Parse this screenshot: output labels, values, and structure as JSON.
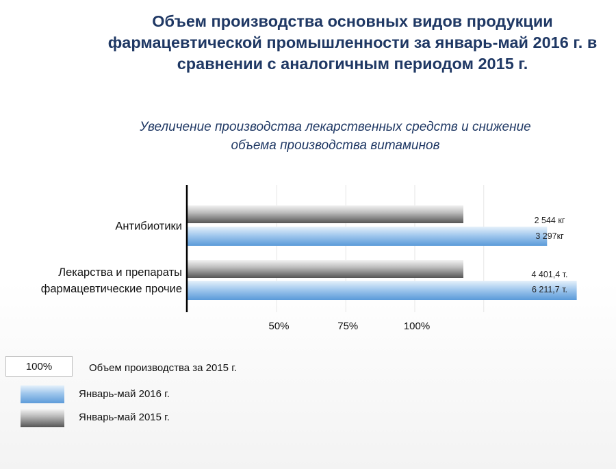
{
  "title": "Объем производства основных видов продукции\nфармацевтической промышленности за январь-май 2016 г. в\nсравнении с аналогичным периодом 2015 г.",
  "subtitle": "Увеличение производства лекарственных средств и снижение\nобъема производства витаминов",
  "colors": {
    "blue": "#5B9BD5",
    "grey": "#808080",
    "title": "#1F3864"
  },
  "chart_data": {
    "type": "bar",
    "orientation": "horizontal",
    "categories": [
      "Антибиотики",
      "Лекарства и препараты\nфармацевтические прочие"
    ],
    "series": [
      {
        "name": "Январь-май 2015 г.",
        "values": [
          100,
          100
        ],
        "labels": [
          "2 544 кг",
          "4 401,4 т."
        ]
      },
      {
        "name": "Январь-май 2016 г.",
        "values": [
          129.6,
          141.1
        ],
        "labels": [
          "3 297кг",
          "6 211,7 т."
        ]
      }
    ],
    "xticks": [
      "50%",
      "75%",
      "100%"
    ],
    "xlim": [
      0,
      157
    ],
    "grid": true,
    "legend": {
      "box_label": "100%",
      "box_text": "Объем производства за 2015 г.",
      "placement": "bottom-left"
    }
  }
}
